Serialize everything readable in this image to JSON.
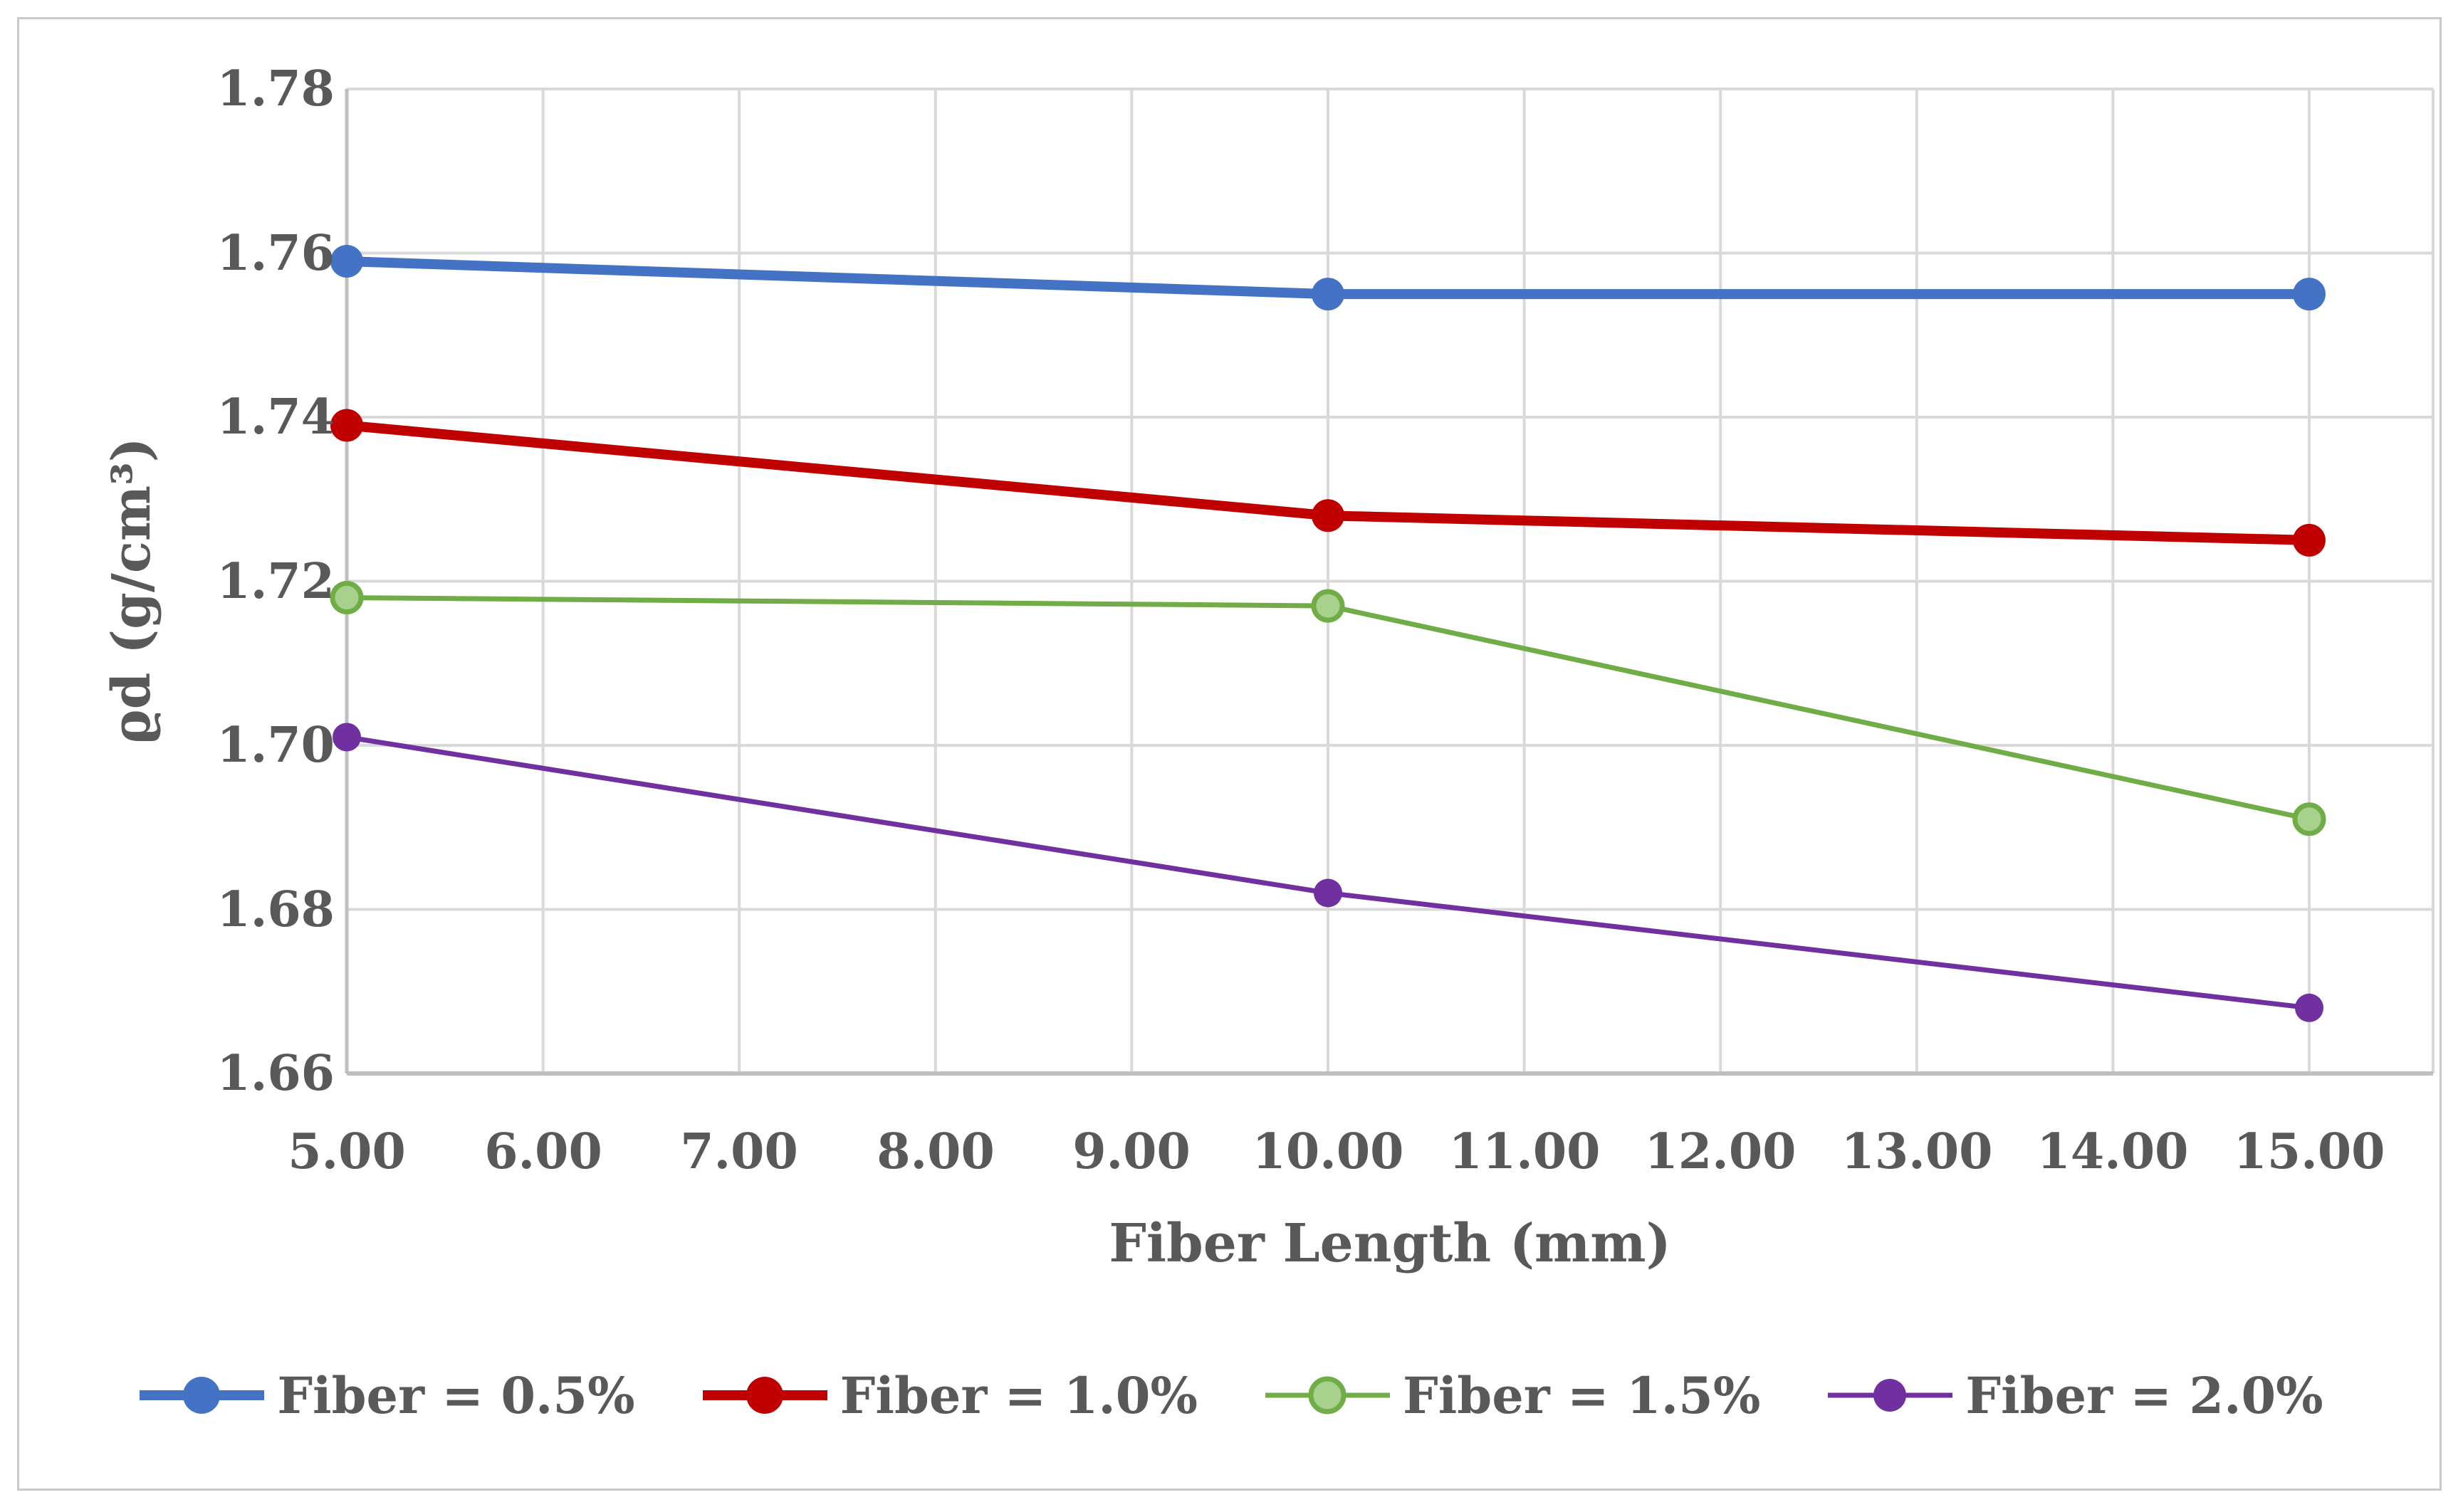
{
  "figure": {
    "background": "#ffffff",
    "frame_border_color": "#c9c9c9",
    "text_color": "#595959",
    "gridline_color": "#d9d9d9",
    "axis_line_color": "#bfbfbf"
  },
  "chart_data": {
    "type": "line",
    "title": "",
    "xlabel": "Fiber Length (mm)",
    "ylabel": "ϱd (g/cm³)",
    "x": [
      5,
      10,
      15
    ],
    "xlim": [
      5,
      15.63
    ],
    "ylim": [
      1.66,
      1.78
    ],
    "grid": "on",
    "legend_position": "bottom",
    "x_ticks": [
      5,
      6,
      7,
      8,
      9,
      10,
      11,
      12,
      13,
      14,
      15
    ],
    "x_tick_labels": [
      "5.00",
      "6.00",
      "7.00",
      "8.00",
      "9.00",
      "10.00",
      "11.00",
      "12.00",
      "13.00",
      "14.00",
      "15.00"
    ],
    "y_ticks": [
      1.78,
      1.76,
      1.74,
      1.72,
      1.7,
      1.68,
      1.66
    ],
    "y_tick_labels": [
      "1.78",
      "1.76",
      "1.74",
      "1.72",
      "1.70",
      "1.68",
      "1.66"
    ],
    "series": [
      {
        "name": "Fiber = 0.5%",
        "values": [
          1.759,
          1.755,
          1.755
        ],
        "color": "#4472c4",
        "line_width": 14,
        "marker": {
          "shape": "circle",
          "r": 23,
          "fill": "#4472c4",
          "stroke": "none",
          "stroke_width": 0
        }
      },
      {
        "name": "Fiber = 1.0%",
        "values": [
          1.739,
          1.728,
          1.725
        ],
        "color": "#c00000",
        "line_width": 14,
        "marker": {
          "shape": "circle",
          "r": 23,
          "fill": "#c00000",
          "stroke": "none",
          "stroke_width": 0
        }
      },
      {
        "name": "Fiber = 1.5%",
        "values": [
          1.718,
          1.717,
          1.691
        ],
        "color": "#70ad47",
        "line_width": 7,
        "marker": {
          "shape": "circle",
          "r": 20,
          "fill": "#a9d18e",
          "stroke": "#70ad47",
          "stroke_width": 7
        }
      },
      {
        "name": "Fiber = 2.0%",
        "values": [
          1.701,
          1.682,
          1.668
        ],
        "color": "#7030a0",
        "line_width": 7,
        "marker": {
          "shape": "circle",
          "r": 20,
          "fill": "#7030a0",
          "stroke": "none",
          "stroke_width": 0
        }
      }
    ]
  }
}
